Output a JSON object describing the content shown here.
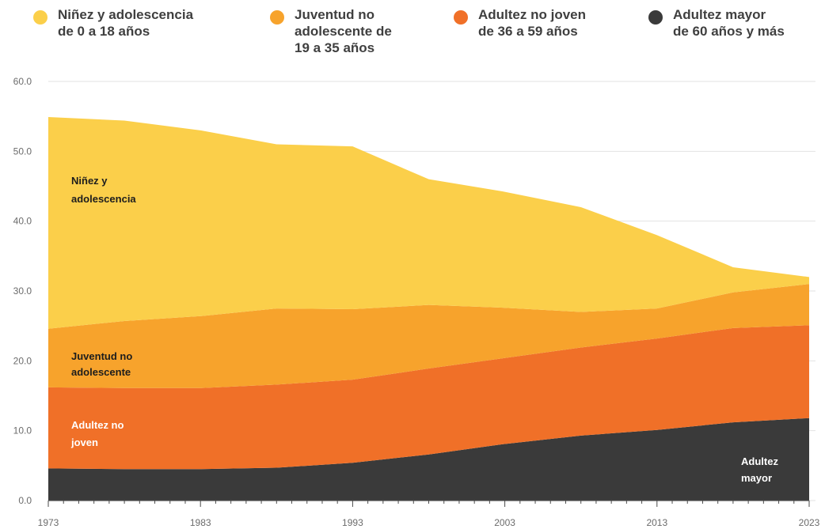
{
  "legend": {
    "items": [
      {
        "label_l1": "Niñez y adolescencia",
        "label_l2": "de 0 a 18 años",
        "label_l3": "",
        "color": "#fbcf4a"
      },
      {
        "label_l1": "Juventud no",
        "label_l2": "adolescente de",
        "label_l3": "19 a 35 años",
        "color": "#f7a32c"
      },
      {
        "label_l1": "Adultez no joven",
        "label_l2": "de 36 a 59 años",
        "label_l3": "",
        "color": "#f07028"
      },
      {
        "label_l1": "Adultez mayor",
        "label_l2": "de 60 años y más",
        "label_l3": "",
        "color": "#3a3a3a"
      }
    ]
  },
  "labels": {
    "ninez_l1": "Niñez y",
    "ninez_l2": "adolescencia",
    "juventud_l1": "Juventud no",
    "juventud_l2": "adolescente",
    "adultez_l1": "Adultez no",
    "adultez_l2": "joven",
    "mayor_l1": "Adultez",
    "mayor_l2": "mayor"
  },
  "chart_data": {
    "type": "area",
    "stacked": true,
    "x": [
      1973,
      1978,
      1983,
      1988,
      1993,
      1998,
      2003,
      2008,
      2013,
      2018,
      2023
    ],
    "x_ticks": [
      "1973",
      "1983",
      "1993",
      "2003",
      "2013",
      "2023"
    ],
    "y_ticks": [
      "0.0",
      "10.0",
      "20.0",
      "30.0",
      "40.0",
      "50.0",
      "60.0"
    ],
    "ylim": [
      0,
      60
    ],
    "grid": true,
    "legend_position": "top",
    "series": [
      {
        "name": "Adultez mayor de 60 años y más",
        "color": "#3a3a3a",
        "values": [
          4.6,
          4.5,
          4.5,
          4.7,
          5.4,
          6.6,
          8.1,
          9.3,
          10.1,
          11.2,
          11.8
        ]
      },
      {
        "name": "Adultez no joven de 36 a 59 años",
        "color": "#f07028",
        "values": [
          11.6,
          11.6,
          11.6,
          11.9,
          11.9,
          12.3,
          12.3,
          12.6,
          13.1,
          13.5,
          13.3
        ]
      },
      {
        "name": "Juventud no adolescente de 19 a 35 años",
        "color": "#f7a32c",
        "values": [
          8.4,
          9.6,
          10.3,
          10.9,
          10.1,
          9.1,
          7.2,
          5.1,
          4.3,
          5.1,
          5.9
        ]
      },
      {
        "name": "Niñez y adolescencia de 0 a 18 años",
        "color": "#fbcf4a",
        "values": [
          30.3,
          28.7,
          26.6,
          23.5,
          23.3,
          18.0,
          16.6,
          15.0,
          10.5,
          3.6,
          1.0
        ]
      }
    ]
  }
}
